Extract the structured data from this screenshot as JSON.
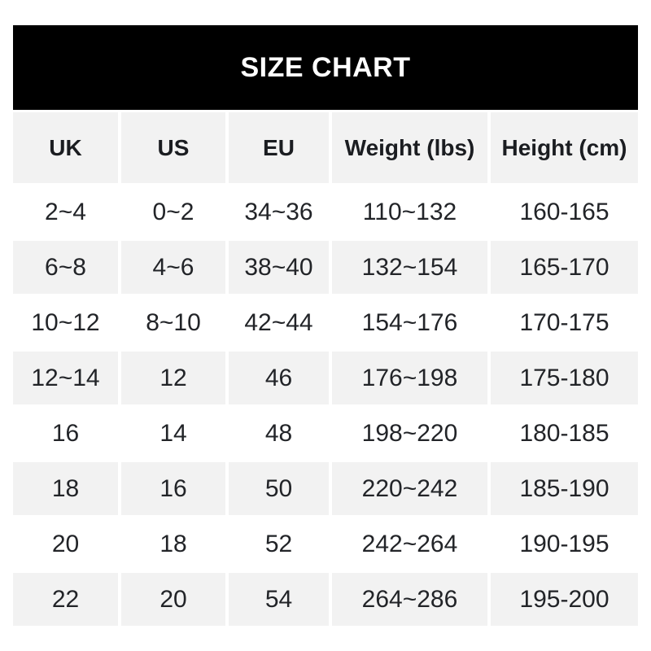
{
  "chart_data": {
    "type": "table",
    "title": "SIZE CHART",
    "columns": [
      "UK",
      "US",
      "EU",
      "Weight (lbs)",
      "Height (cm)"
    ],
    "rows": [
      [
        "2~4",
        "0~2",
        "34~36",
        "110~132",
        "160-165"
      ],
      [
        "6~8",
        "4~6",
        "38~40",
        "132~154",
        "165-170"
      ],
      [
        "10~12",
        "8~10",
        "42~44",
        "154~176",
        "170-175"
      ],
      [
        "12~14",
        "12",
        "46",
        "176~198",
        "175-180"
      ],
      [
        "16",
        "14",
        "48",
        "198~220",
        "180-185"
      ],
      [
        "18",
        "16",
        "50",
        "220~242",
        "185-190"
      ],
      [
        "20",
        "18",
        "52",
        "242~264",
        "190-195"
      ],
      [
        "22",
        "20",
        "54",
        "264~286",
        "195-200"
      ]
    ],
    "layout": {
      "legend": "none",
      "grid": "off",
      "striping": "alternating rows white / light gray",
      "column_separators": "thin white gutters"
    }
  },
  "colors": {
    "page_bg": "#ffffff",
    "banner_bg": "#000000",
    "banner_text": "#ffffff",
    "stripe_bg": "#f2f2f2",
    "head_text": "#1b1d21",
    "cell_text": "#222428"
  }
}
